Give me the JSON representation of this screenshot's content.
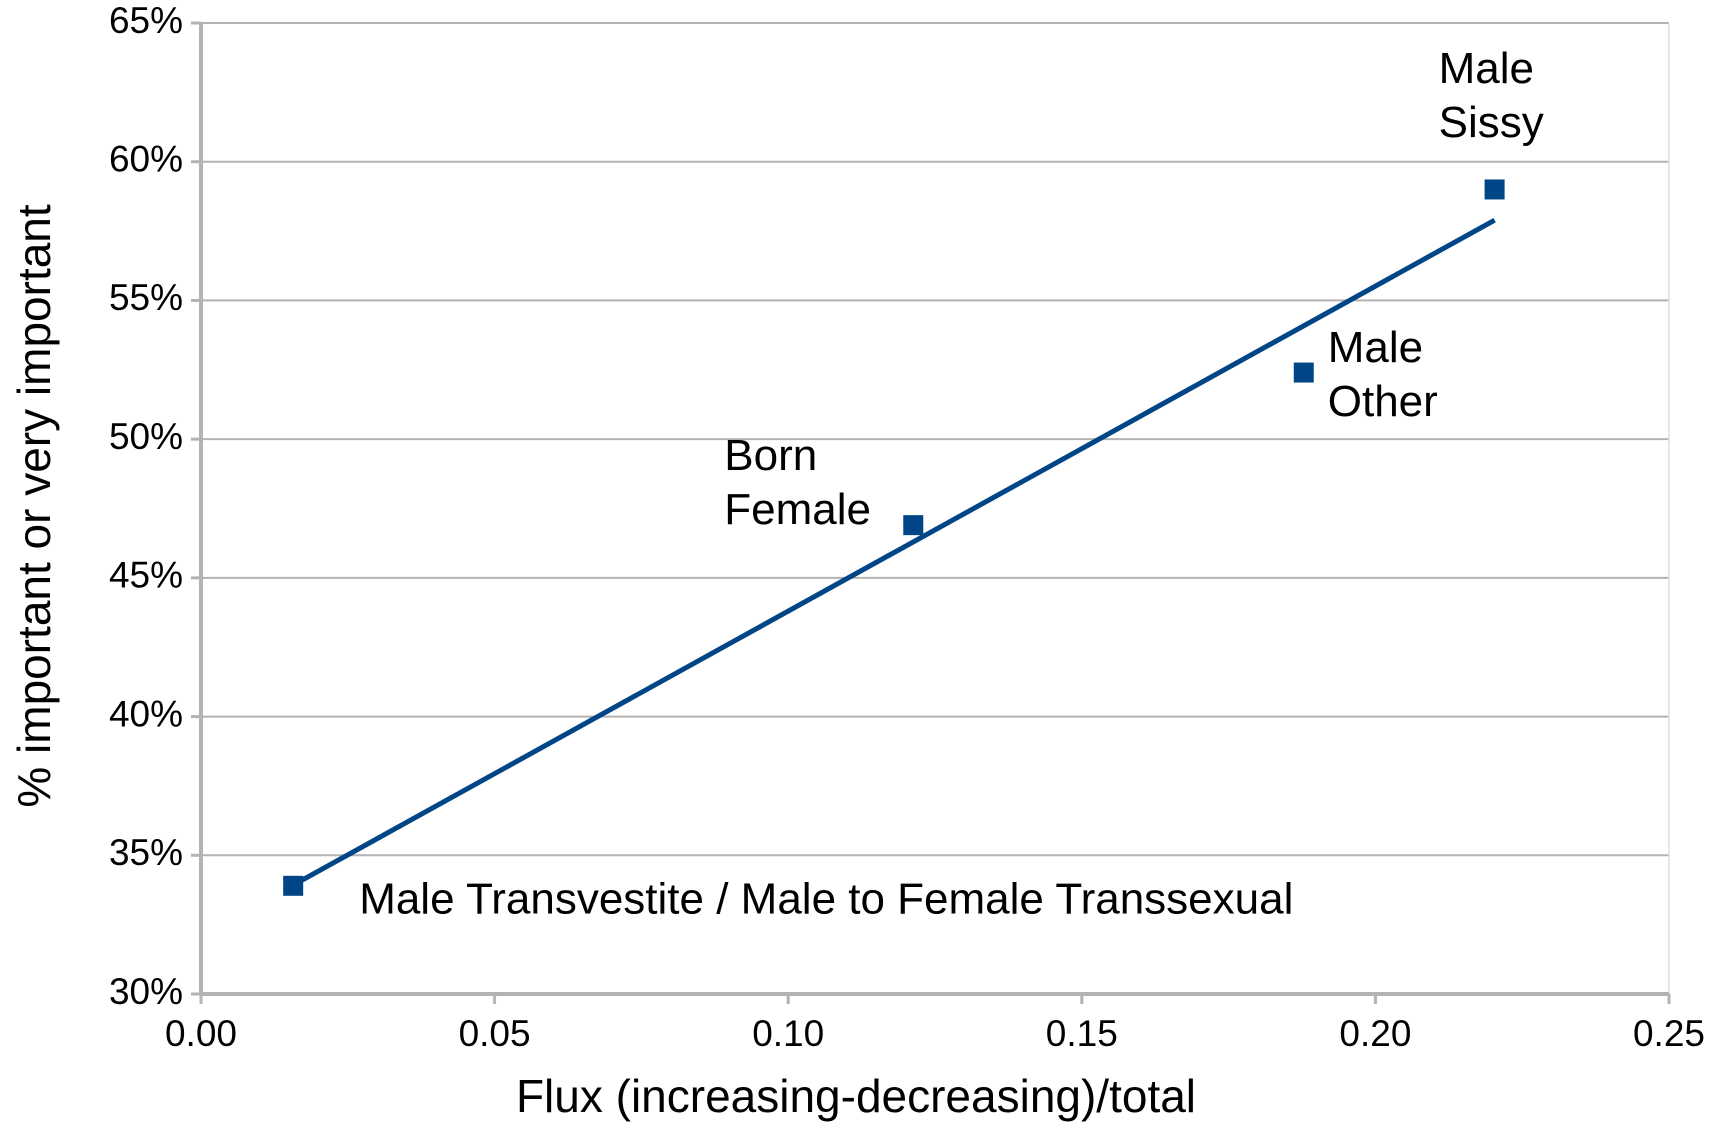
{
  "chart_data": {
    "type": "scatter",
    "xlabel": "Flux (increasing-decreasing)/total",
    "ylabel": "% important or very important",
    "x": [
      0.0157,
      0.1213,
      0.1878,
      0.2203
    ],
    "series": [
      {
        "color": "#004586",
        "values": [
          33.9,
          46.9,
          52.4,
          59.0
        ]
      }
    ],
    "point_labels": [
      [
        "Male Transvestite / Male to Female Transsexual"
      ],
      [
        "Born",
        "Female"
      ],
      [
        "Male",
        "Other"
      ],
      [
        "Male",
        "Sissy"
      ]
    ],
    "trendline": true,
    "trendline_color": "#004586",
    "xlim": [
      0,
      0.25
    ],
    "xticks": [
      {
        "value": 0,
        "label": "0.00"
      },
      {
        "value": 0.05,
        "label": "0.05"
      },
      {
        "value": 0.1,
        "label": "0.10"
      },
      {
        "value": 0.15,
        "label": "0.15"
      },
      {
        "value": 0.2,
        "label": "0.20"
      },
      {
        "value": 0.25,
        "label": "0.25"
      }
    ],
    "ylim": [
      30,
      65
    ],
    "yticks": [
      {
        "value": 30,
        "label": "30%"
      },
      {
        "value": 35,
        "label": "35%"
      },
      {
        "value": 40,
        "label": "40%"
      },
      {
        "value": 45,
        "label": "45%"
      },
      {
        "value": 50,
        "label": "50%"
      },
      {
        "value": 55,
        "label": "55%"
      },
      {
        "value": 60,
        "label": "60%"
      },
      {
        "value": 65,
        "label": "65%"
      }
    ],
    "grid": true
  }
}
